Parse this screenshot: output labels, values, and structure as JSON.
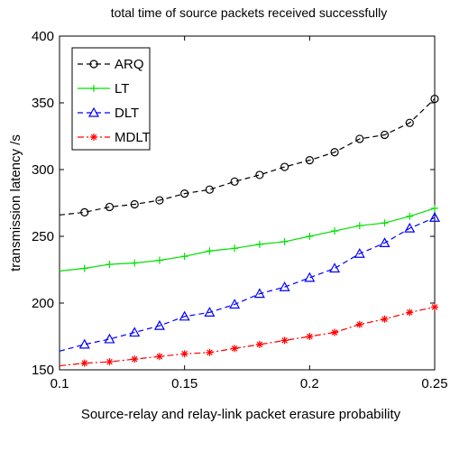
{
  "chart_data": {
    "type": "line",
    "title": "total time of source packets received successfully",
    "xlabel": "Source-relay and relay-link packet erasure probability",
    "ylabel": "transmission latency /s",
    "xlim": [
      0.1,
      0.25
    ],
    "ylim": [
      150,
      400
    ],
    "xticks": [
      0.1,
      0.15,
      0.2,
      0.25
    ],
    "xtick_labels": [
      "0.1",
      "0.15",
      "0.2",
      "0.25"
    ],
    "yticks": [
      150,
      200,
      250,
      300,
      350,
      400
    ],
    "ytick_labels": [
      "150",
      "200",
      "250",
      "300",
      "350",
      "400"
    ],
    "grid": false,
    "legend_position": "top-left",
    "x": [
      0.1,
      0.11,
      0.12,
      0.13,
      0.14,
      0.15,
      0.16,
      0.17,
      0.18,
      0.19,
      0.2,
      0.21,
      0.22,
      0.23,
      0.24,
      0.25
    ],
    "series": [
      {
        "name": "ARQ",
        "color": "#000000",
        "dash": "dashed",
        "marker": "circle",
        "values": [
          266,
          268,
          272,
          274,
          277,
          282,
          285,
          291,
          296,
          302,
          307,
          313,
          323,
          326,
          335,
          353
        ]
      },
      {
        "name": "LT",
        "color": "#00e000",
        "dash": "solid",
        "marker": "plus",
        "values": [
          224,
          226,
          229,
          230,
          232,
          235,
          239,
          241,
          244,
          246,
          250,
          254,
          258,
          260,
          265,
          271
        ]
      },
      {
        "name": "DLT",
        "color": "#0000ff",
        "dash": "dashed",
        "marker": "triangle",
        "values": [
          164,
          169,
          173,
          178,
          183,
          190,
          193,
          199,
          207,
          212,
          219,
          226,
          237,
          245,
          256,
          264
        ]
      },
      {
        "name": "MDLT",
        "color": "#ff0000",
        "dash": "dashdot",
        "marker": "star",
        "values": [
          153,
          155,
          156,
          158,
          160,
          162,
          163,
          166,
          169,
          172,
          175,
          178,
          184,
          188,
          193,
          197
        ]
      }
    ]
  }
}
